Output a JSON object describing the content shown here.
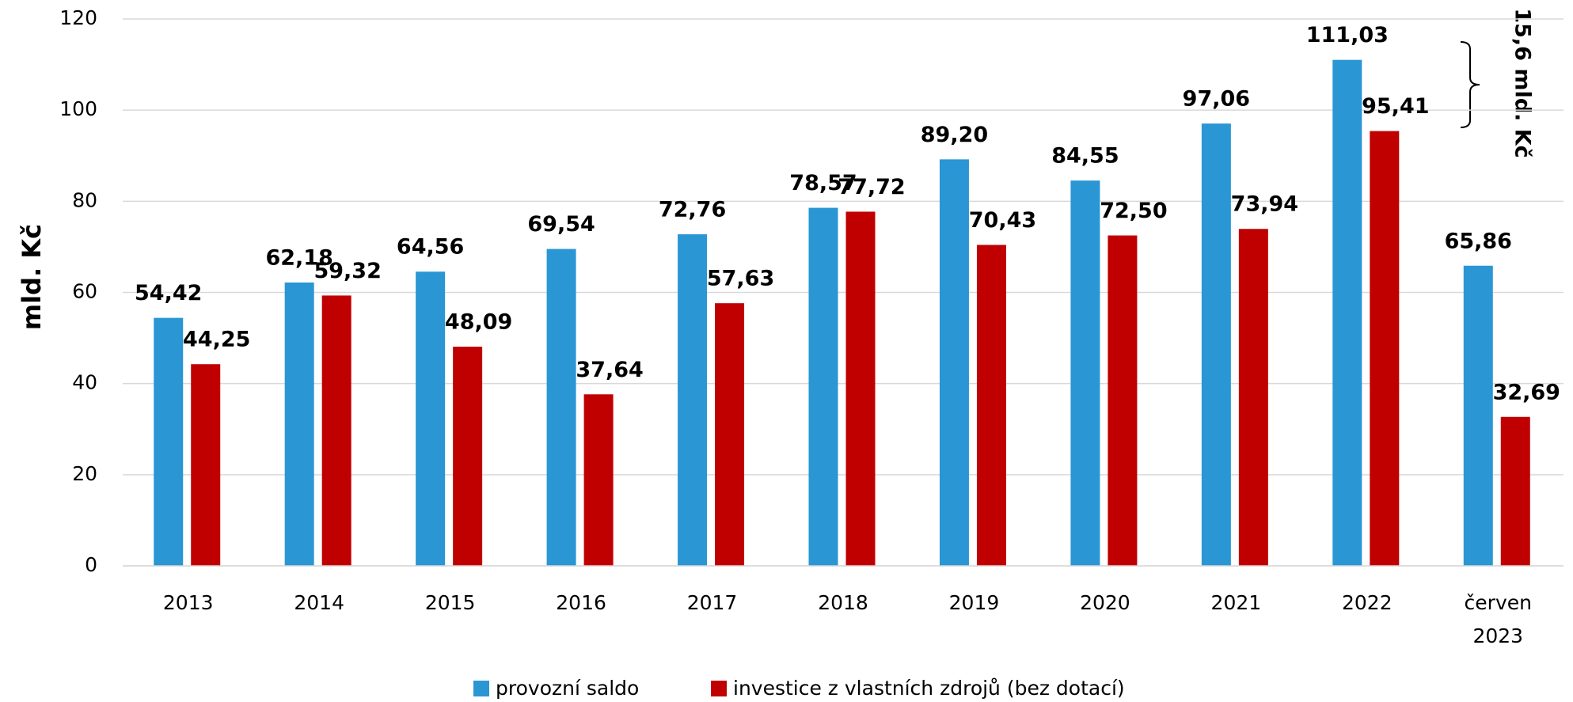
{
  "chart_data": {
    "type": "bar",
    "y_label": "mld. Kč",
    "categories": [
      "2013",
      "2014",
      "2015",
      "2016",
      "2017",
      "2018",
      "2019",
      "2020",
      "2021",
      "2022",
      "červen 2023"
    ],
    "series": [
      {
        "name": "provozní saldo",
        "color": "#2a96d4",
        "values": [
          54.42,
          62.18,
          64.56,
          69.54,
          72.76,
          78.57,
          89.2,
          84.55,
          97.06,
          111.03,
          65.86
        ],
        "value_labels": [
          "54,42",
          "62,18",
          "64,56",
          "69,54",
          "72,76",
          "78,57",
          "89,20",
          "84,55",
          "97,06",
          "111,03",
          "65,86"
        ]
      },
      {
        "name": "investice z vlastních zdrojů (bez dotací)",
        "color": "#c00000",
        "values": [
          44.25,
          59.32,
          48.09,
          37.64,
          57.63,
          77.72,
          70.43,
          72.5,
          73.94,
          95.41,
          32.69
        ],
        "value_labels": [
          "44,25",
          "59,32",
          "48,09",
          "37,64",
          "57,63",
          "77,72",
          "70,43",
          "72,50",
          "73,94",
          "95,41",
          "32,69"
        ]
      }
    ],
    "annotation": "15,6 mld. Kč",
    "ylim": [
      0,
      120
    ],
    "yticks": [
      0,
      20,
      40,
      60,
      80,
      100,
      120
    ],
    "grid": true,
    "legend": "bottom"
  }
}
